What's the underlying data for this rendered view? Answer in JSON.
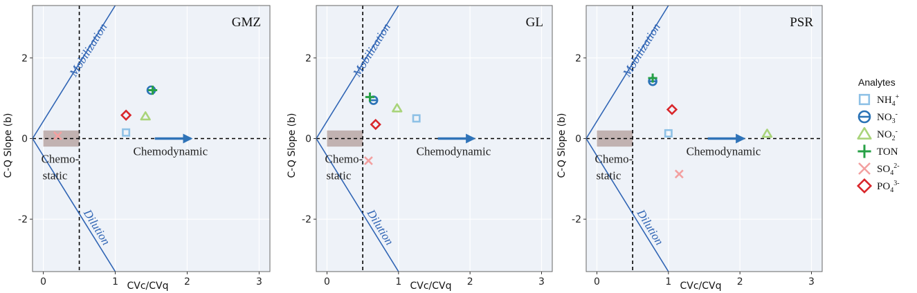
{
  "chart_data": {
    "type": "scatter",
    "x_label": "CVc/CVq",
    "y_label": "C-Q Slope (b)",
    "xlim": [
      -0.15,
      3.15
    ],
    "ylim": [
      -3.3,
      3.3
    ],
    "x_ticks": [
      0,
      1,
      2,
      3
    ],
    "y_ticks": [
      -2,
      0,
      2
    ],
    "threshold_x": 0.5,
    "threshold_y": 0,
    "chemostatic_box": {
      "x": [
        0,
        0.5
      ],
      "y": [
        -0.2,
        0.2
      ]
    },
    "arrow": {
      "from": 1.55,
      "to": 2.05,
      "y": 0
    },
    "region_labels": {
      "chemo_top": "Chemo-",
      "chemo_bottom": "static",
      "chemodynamic": "Chemodynamic"
    },
    "line_labels": {
      "mobilization": "Mobilization",
      "dilution": "Dilution"
    },
    "legend": {
      "title": "Analytes",
      "items": [
        {
          "key": "NH4",
          "base": "NH",
          "sub": "4",
          "sup": "+",
          "marker": "square",
          "color": "#8ec1e6"
        },
        {
          "key": "NO3",
          "base": "NO",
          "sub": "3",
          "sup": "-",
          "marker": "circle-minus",
          "color": "#2b73b6"
        },
        {
          "key": "NO2",
          "base": "NO",
          "sub": "2",
          "sup": "-",
          "marker": "triangle",
          "color": "#a9d47a"
        },
        {
          "key": "TON",
          "base": "TON",
          "sub": "",
          "sup": "",
          "marker": "plus",
          "color": "#27a046"
        },
        {
          "key": "SO4",
          "base": "SO",
          "sub": "4",
          "sup": "2-",
          "marker": "x",
          "color": "#f3a0a0"
        },
        {
          "key": "PO4",
          "base": "PO",
          "sub": "4",
          "sup": "3-",
          "marker": "diamond",
          "color": "#d9262b"
        }
      ]
    },
    "panels": [
      {
        "title": "GMZ",
        "points": [
          {
            "analyte": "NH4",
            "x": 1.15,
            "y": 0.15
          },
          {
            "analyte": "NO3",
            "x": 1.5,
            "y": 1.2
          },
          {
            "analyte": "NO2",
            "x": 1.42,
            "y": 0.55
          },
          {
            "analyte": "TON",
            "x": 1.52,
            "y": 1.2
          },
          {
            "analyte": "SO4",
            "x": 0.2,
            "y": 0.07
          },
          {
            "analyte": "PO4",
            "x": 1.15,
            "y": 0.58
          }
        ]
      },
      {
        "title": "GL",
        "points": [
          {
            "analyte": "NH4",
            "x": 1.25,
            "y": 0.5
          },
          {
            "analyte": "NO3",
            "x": 0.65,
            "y": 0.95
          },
          {
            "analyte": "NO2",
            "x": 0.98,
            "y": 0.75
          },
          {
            "analyte": "TON",
            "x": 0.6,
            "y": 1.03
          },
          {
            "analyte": "SO4",
            "x": 0.58,
            "y": -0.55
          },
          {
            "analyte": "PO4",
            "x": 0.68,
            "y": 0.35
          }
        ]
      },
      {
        "title": "PSR",
        "points": [
          {
            "analyte": "NH4",
            "x": 1.0,
            "y": 0.13
          },
          {
            "analyte": "NO3",
            "x": 0.78,
            "y": 1.42
          },
          {
            "analyte": "NO2",
            "x": 2.38,
            "y": 0.12
          },
          {
            "analyte": "TON",
            "x": 0.78,
            "y": 1.5
          },
          {
            "analyte": "SO4",
            "x": 1.15,
            "y": -0.88
          },
          {
            "analyte": "PO4",
            "x": 1.05,
            "y": 0.72
          }
        ]
      }
    ]
  }
}
